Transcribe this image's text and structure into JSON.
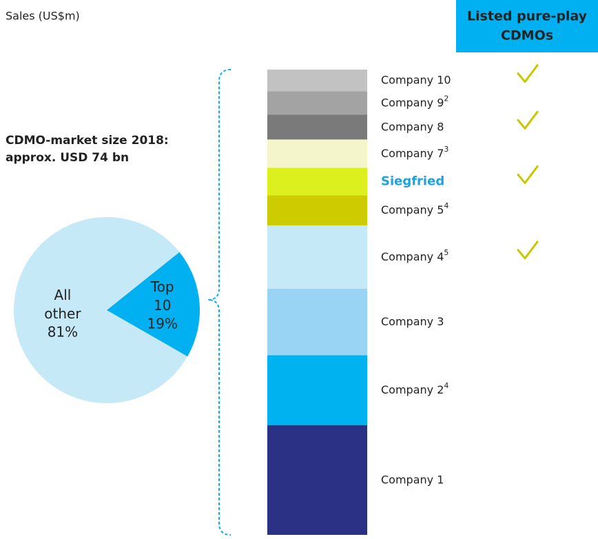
{
  "chart_data": [
    {
      "type": "pie",
      "categories": [
        "All other",
        "Top 10"
      ],
      "values": [
        81,
        19
      ],
      "value_labels": [
        "81%",
        "19%"
      ],
      "colors": [
        "#c6e9f8",
        "#00b0f0"
      ]
    },
    {
      "type": "bar",
      "stacked": true,
      "title": "Sales (US$m)",
      "annotation": [
        "CDMO-market size 2018:",
        "approx. USD 74 bn"
      ],
      "listed_header": [
        "Listed pure-play",
        "CDMOs"
      ],
      "listed_color": "#00b0f0",
      "check_color": "#c8c800",
      "highlighted": "Siegfried",
      "highlight_color": "#1aa3e0",
      "categories": [
        "Company 1",
        "Company 2",
        "Company 3",
        "Company 4",
        "Company 5",
        "Siegfried",
        "Company 7",
        "Company 8",
        "Company 9",
        "Company 10"
      ],
      "footnotes": [
        null,
        "4",
        null,
        "5",
        "4",
        null,
        "3",
        null,
        "2",
        null
      ],
      "values": [
        3300,
        2100,
        2000,
        1900,
        900,
        830,
        850,
        750,
        700,
        650
      ],
      "colors": [
        "#2b3184",
        "#00b2f0",
        "#99d4f5",
        "#c6e9f8",
        "#cccc00",
        "#dcf01e",
        "#f5f5cc",
        "#7a7a7a",
        "#a3a3a3",
        "#c2c2c2"
      ],
      "listed": [
        false,
        false,
        false,
        true,
        false,
        true,
        false,
        true,
        false,
        true
      ]
    }
  ]
}
